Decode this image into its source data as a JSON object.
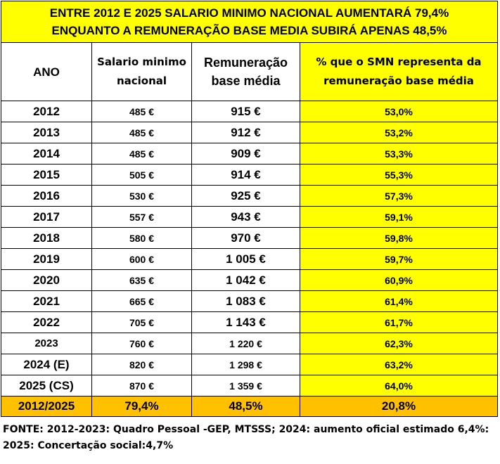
{
  "title": {
    "line1": "ENTRE 2012 E 2025 SALARIO MINIMO NACIONAL AUMENTARÁ 79,4%",
    "line2": "ENQUANTO A REMUNERAÇÃO BASE MEDIA SUBIRÁ APENAS 48,5%"
  },
  "headers": {
    "ano": "ANO",
    "smn_line1": "Salario minimo",
    "smn_line2": "nacional",
    "rem_line1": "Remuneração",
    "rem_line2": "base média",
    "pct_line1": "% que o SMN representa da",
    "pct_line2": "remuneração base média"
  },
  "rows": [
    {
      "ano": "2012",
      "smn": "485 €",
      "rem": "915 €",
      "pct": "53,0%"
    },
    {
      "ano": "2013",
      "smn": "485 €",
      "rem": "912 €",
      "pct": "53,2%"
    },
    {
      "ano": "2014",
      "smn": "485 €",
      "rem": "909 €",
      "pct": "53,3%"
    },
    {
      "ano": "2015",
      "smn": "505 €",
      "rem": "914 €",
      "pct": "55,3%"
    },
    {
      "ano": "2016",
      "smn": "530 €",
      "rem": "925 €",
      "pct": "57,3%"
    },
    {
      "ano": "2017",
      "smn": "557 €",
      "rem": "943 €",
      "pct": "59,1%"
    },
    {
      "ano": "2018",
      "smn": "580 €",
      "rem": "970 €",
      "pct": "59,8%"
    },
    {
      "ano": "2019",
      "smn": "600 €",
      "rem": "1 005 €",
      "pct": "59,7%"
    },
    {
      "ano": "2020",
      "smn": "635 €",
      "rem": "1 042 €",
      "pct": "60,9%"
    },
    {
      "ano": "2021",
      "smn": "665 €",
      "rem": "1 083 €",
      "pct": "61,4%"
    },
    {
      "ano": "2022",
      "smn": "705 €",
      "rem": "1 143 €",
      "pct": "61,7%"
    },
    {
      "ano": "2023",
      "smn": "760 €",
      "rem": "1 220 €",
      "pct": "62,3%"
    },
    {
      "ano": "2024 (E)",
      "smn": "820 €",
      "rem": "1 298 €",
      "pct": "63,2%"
    },
    {
      "ano": "2025 (CS)",
      "smn": "870 €",
      "rem": "1 359 €",
      "pct": "64,0%"
    }
  ],
  "total": {
    "ano": "2012/2025",
    "smn": "79,4%",
    "rem": "48,5%",
    "pct": "20,8%"
  },
  "source": {
    "line1": "FONTE: 2012-2023: Quadro Pessoal -GEP, MTSSS; 2024: aumento oficial estimado 6,4%:",
    "line2": "2025: Concertação social:4,7%"
  },
  "colors": {
    "highlight": "#ffff00",
    "total_row": "#ffc000"
  }
}
